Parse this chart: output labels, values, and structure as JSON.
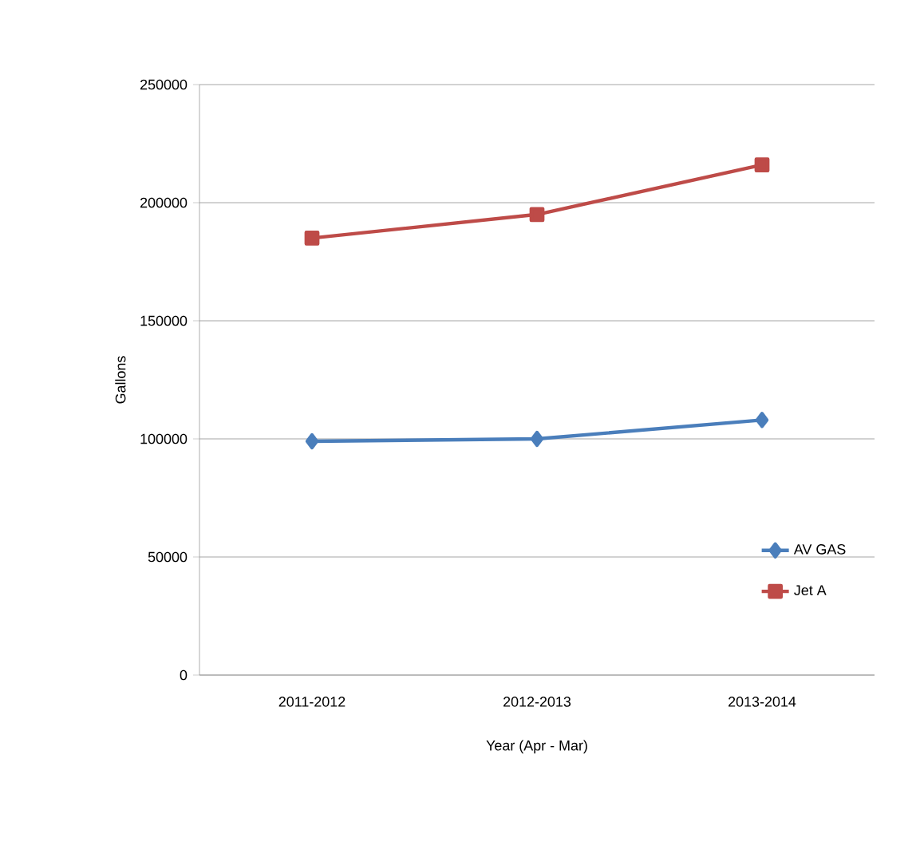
{
  "chart_data": {
    "type": "line",
    "xlabel": "Year (Apr - Mar)",
    "ylabel": "Gallons",
    "categories": [
      "2011-2012",
      "2012-2013",
      "2013-2014"
    ],
    "series": [
      {
        "name": "AV GAS",
        "color": "#4a7ebb",
        "marker": "diamond",
        "values": [
          99000,
          100000,
          108000
        ]
      },
      {
        "name": "Jet A",
        "color": "#be4b48",
        "marker": "square",
        "values": [
          185000,
          195000,
          216000
        ]
      }
    ],
    "ylim": [
      0,
      250000
    ],
    "yticks": [
      0,
      50000,
      100000,
      150000,
      200000,
      250000
    ],
    "grid": "y",
    "legend": "bottom right",
    "line_style": "solid"
  }
}
